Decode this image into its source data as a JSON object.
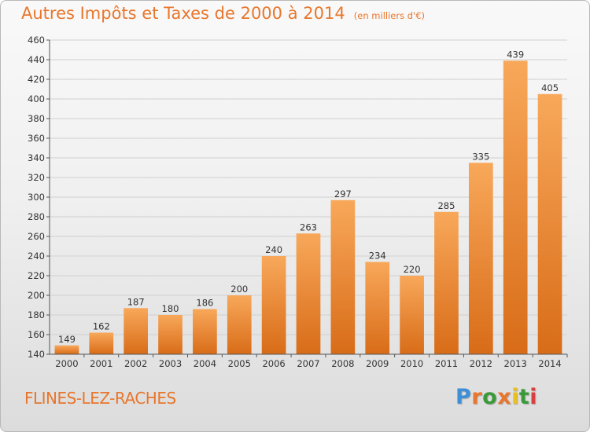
{
  "header": {
    "title": "Autres Impôts et Taxes de 2000 à 2014",
    "subtitle": "(en milliers d'€)"
  },
  "footer": {
    "commune": "FLINES-LEZ-RACHES"
  },
  "logo": {
    "text": "Proxiti",
    "letter_colors": [
      "#3f8fd8",
      "#e8762c",
      "#3a9a3a",
      "#e8762c",
      "#e8c020",
      "#3a9a3a",
      "#d84040"
    ]
  },
  "colors": {
    "bar_light": "#f8a85a",
    "bar_dark": "#d86c18",
    "accent": "#e8762c",
    "grid": "#d0d0d0",
    "axis": "#555555",
    "text": "#333333"
  },
  "chart_data": {
    "type": "bar",
    "categories": [
      "2000",
      "2001",
      "2002",
      "2003",
      "2004",
      "2005",
      "2006",
      "2007",
      "2008",
      "2009",
      "2010",
      "2011",
      "2012",
      "2013",
      "2014"
    ],
    "values": [
      149,
      162,
      187,
      180,
      186,
      200,
      240,
      263,
      297,
      234,
      220,
      285,
      335,
      439,
      405
    ],
    "data_labels": [
      "149",
      "162",
      "187",
      "180",
      "186",
      "200",
      "240",
      "263",
      "297",
      "234",
      "220",
      "285",
      "335",
      "439",
      "405"
    ],
    "ylim": [
      140,
      460
    ],
    "yticks": [
      140,
      160,
      180,
      200,
      220,
      240,
      260,
      280,
      300,
      320,
      340,
      360,
      380,
      400,
      420,
      440,
      460
    ],
    "grid": true,
    "legend": "none"
  }
}
